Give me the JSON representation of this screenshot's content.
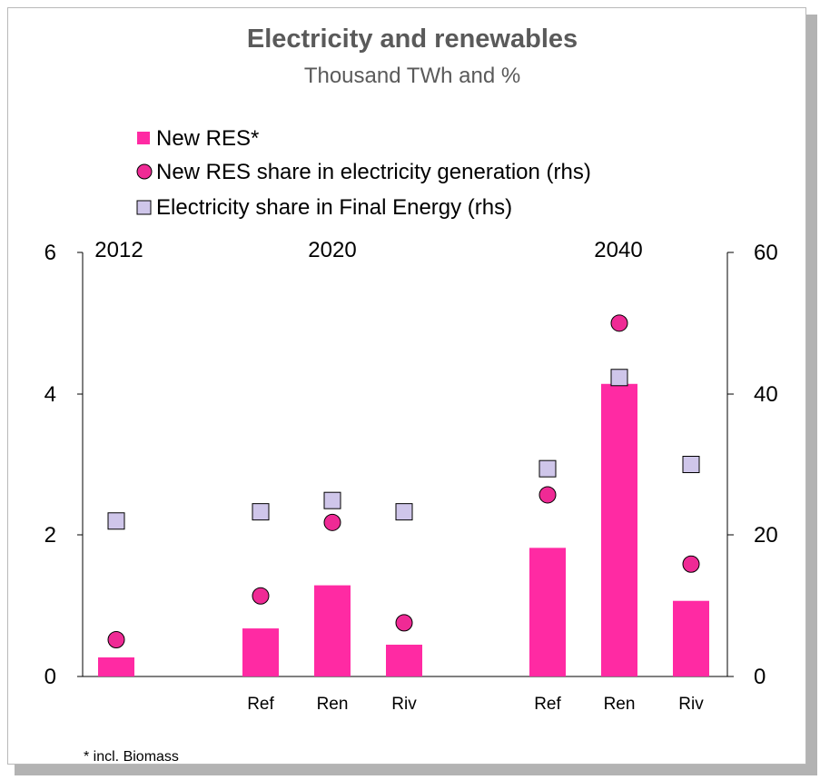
{
  "chart_data": {
    "type": "bar",
    "title": "Electricity and renewables",
    "subtitle": "Thousand TWh and %",
    "footnote": "* incl. Biomass",
    "group_labels": [
      "2012",
      "2020",
      "2040"
    ],
    "categories": [
      "",
      "Ref",
      "Ren",
      "Riv",
      "Ref",
      "Ren",
      "Riv"
    ],
    "groups_of_categories": [
      "2012",
      "2020",
      "2020",
      "2020",
      "2040",
      "2040",
      "2040"
    ],
    "y_left": {
      "ylim": [
        0,
        6
      ],
      "ticks": [
        "0",
        "2",
        "4",
        "6"
      ]
    },
    "y_right": {
      "ylim": [
        0,
        60
      ],
      "ticks": [
        "0",
        "20",
        "40",
        "60"
      ]
    },
    "series": [
      {
        "name": "New RES*",
        "kind": "bar",
        "axis": "left",
        "color": "#ff2aa3",
        "values": [
          0.27,
          0.68,
          1.29,
          0.45,
          1.82,
          4.14,
          1.07
        ]
      },
      {
        "name": "New RES share in electricity generation (rhs)",
        "kind": "circle",
        "axis": "right",
        "color": "#ef2a95",
        "values": [
          5.2,
          11.4,
          21.8,
          7.6,
          25.7,
          50.0,
          15.9
        ]
      },
      {
        "name": "Electricity share in Final Energy (rhs)",
        "kind": "square",
        "axis": "right",
        "color": "#cfc6ea",
        "values": [
          22.0,
          23.3,
          24.9,
          23.3,
          29.4,
          42.3,
          30.0
        ]
      }
    ]
  }
}
